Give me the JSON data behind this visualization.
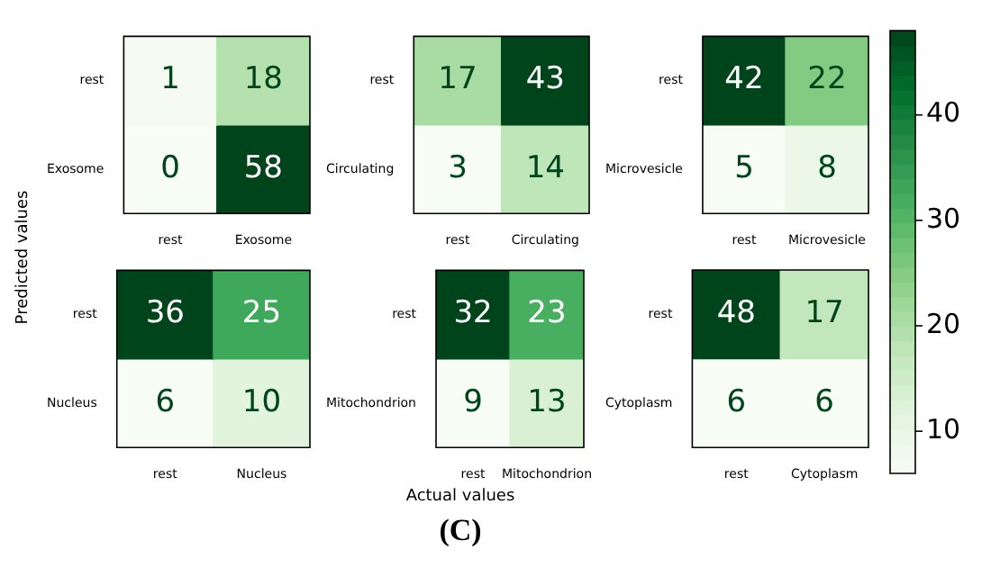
{
  "chart_data": [
    {
      "type": "heatmap",
      "data_labels": true,
      "ylabel": "Predicted values",
      "categories": [
        "rest",
        "Exosome"
      ],
      "y_categories": [
        "rest",
        "Exosome"
      ],
      "cells": [
        [
          1,
          18
        ],
        [
          0,
          58
        ]
      ]
    },
    {
      "type": "heatmap",
      "data_labels": true,
      "categories": [
        "rest",
        "Circulating"
      ],
      "y_categories": [
        "rest",
        "Circulating"
      ],
      "cells": [
        [
          17,
          43
        ],
        [
          3,
          14
        ]
      ]
    },
    {
      "type": "heatmap",
      "data_labels": true,
      "categories": [
        "rest",
        "Microvesicle"
      ],
      "y_categories": [
        "rest",
        "Microvesicle"
      ],
      "cells": [
        [
          42,
          22
        ],
        [
          5,
          8
        ]
      ]
    },
    {
      "type": "heatmap",
      "data_labels": true,
      "categories": [
        "rest",
        "Nucleus"
      ],
      "y_categories": [
        "rest",
        "Nucleus"
      ],
      "cells": [
        [
          36,
          25
        ],
        [
          6,
          10
        ]
      ]
    },
    {
      "type": "heatmap",
      "data_labels": true,
      "xlabel": "Actual values",
      "annotations": [
        "(C)"
      ],
      "categories": [
        "rest",
        "Mitochondrion"
      ],
      "y_categories": [
        "rest",
        "Mitochondrion"
      ],
      "cells": [
        [
          32,
          23
        ],
        [
          9,
          13
        ]
      ]
    },
    {
      "type": "heatmap",
      "data_labels": true,
      "categories": [
        "rest",
        "Cytoplasm"
      ],
      "y_categories": [
        "rest",
        "Cytoplasm"
      ],
      "cells": [
        [
          48,
          17
        ],
        [
          6,
          6
        ]
      ],
      "clim": [
        6,
        48
      ],
      "cticks": [
        10,
        20,
        30,
        40
      ]
    }
  ]
}
